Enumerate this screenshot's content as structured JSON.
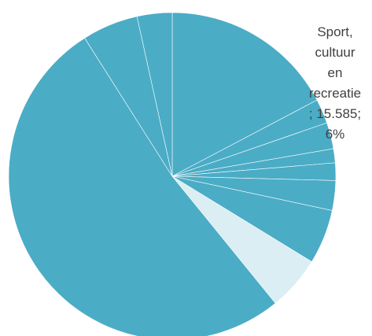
{
  "chart_data": {
    "type": "pie",
    "colors": {
      "default": "#4BACC6",
      "highlight": "#DAEEF3"
    },
    "highlighted_slice": 7,
    "labels": [
      "",
      "",
      "",
      "",
      "",
      "",
      "",
      "Sport, cultuur en recreatie",
      "",
      "",
      ""
    ],
    "values": [
      50000,
      7000,
      7500,
      4000,
      5000,
      8500,
      15585,
      15585,
      150000,
      16000,
      10000
    ],
    "percentages": [
      "",
      "",
      "",
      "",
      "",
      "",
      "",
      "6%",
      "",
      "",
      ""
    ],
    "callout": {
      "lines": [
        "Sport,",
        "cultuur",
        "en",
        "recreatie",
        "; 15.585;",
        "6%"
      ]
    }
  }
}
